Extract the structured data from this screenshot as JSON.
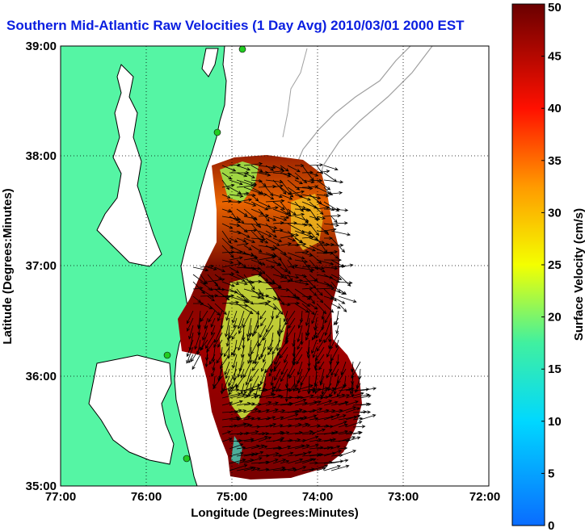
{
  "title": "Southern Mid-Atlantic Raw Velocities (1 Day Avg) 2010/03/01 2000 EST",
  "map": {
    "xlabel": "Longitude (Degrees:Minutes)",
    "ylabel": "Latitude (Degrees:Minutes)",
    "lon_range": [
      -77,
      -72
    ],
    "lat_range": [
      35,
      39
    ],
    "x_ticks": [
      "77:00",
      "76:00",
      "75:00",
      "74:00",
      "73:00",
      "72:00"
    ],
    "y_ticks": [
      "39:00",
      "38:00",
      "37:00",
      "36:00",
      "35:00"
    ],
    "grid": "dotted"
  },
  "colorbar": {
    "label": "Surface Velocity (cm/s)",
    "range": [
      0,
      50
    ],
    "ticks": [
      "0",
      "5",
      "10",
      "15",
      "20",
      "25",
      "30",
      "35",
      "40",
      "45",
      "50"
    ]
  },
  "colors": {
    "land": "#55f5a4",
    "coast": "#000000",
    "bathymetry": "#a0a0a0",
    "title": "#0a1ee0",
    "station": "#22cc22"
  }
}
